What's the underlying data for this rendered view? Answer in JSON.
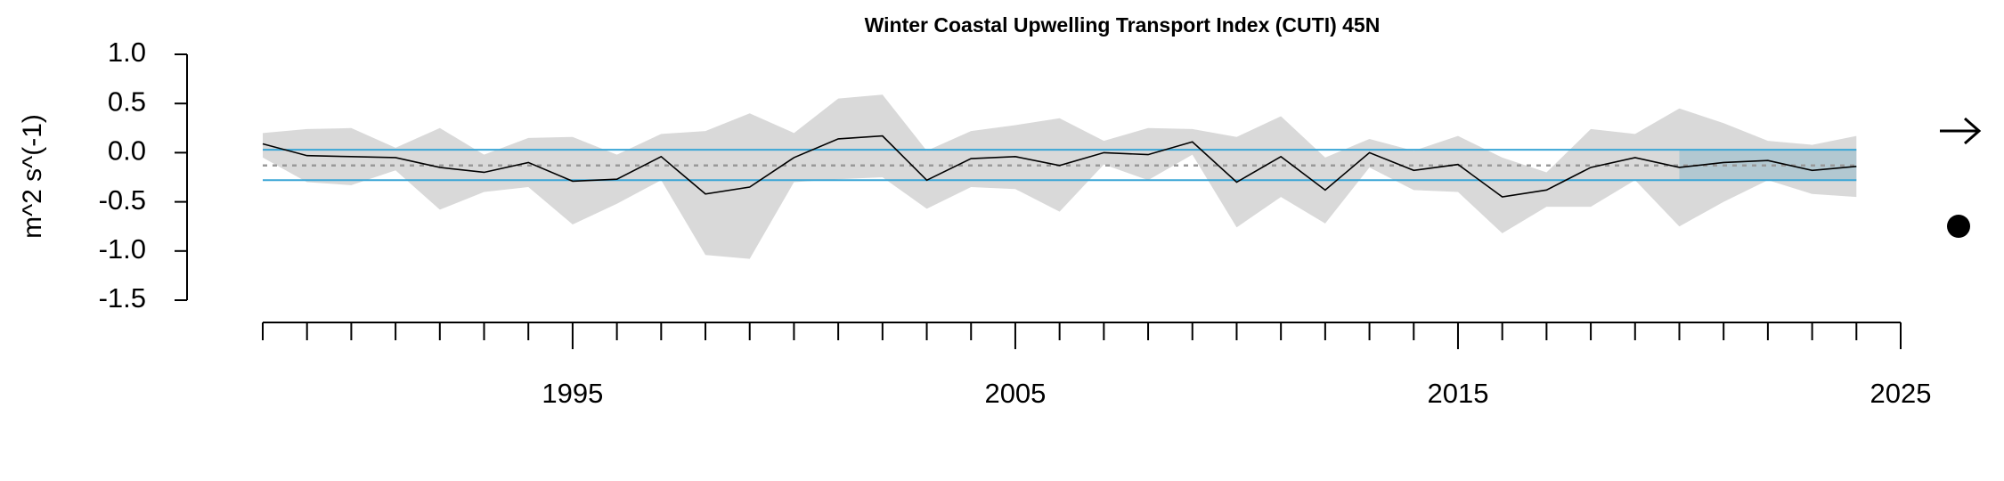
{
  "chart_data": {
    "type": "line",
    "title": "Winter Coastal Upwelling Transport Index (CUTI) 45N",
    "ylabel": "m^2 s^(-1)",
    "x": [
      1988,
      1989,
      1990,
      1991,
      1992,
      1993,
      1994,
      1995,
      1996,
      1997,
      1998,
      1999,
      2000,
      2001,
      2002,
      2003,
      2004,
      2005,
      2006,
      2007,
      2008,
      2009,
      2010,
      2011,
      2012,
      2013,
      2014,
      2015,
      2016,
      2017,
      2018,
      2019,
      2020,
      2021,
      2022,
      2023,
      2024
    ],
    "values": [
      0.09,
      -0.03,
      -0.04,
      -0.05,
      -0.15,
      -0.2,
      -0.1,
      -0.29,
      -0.27,
      -0.04,
      -0.42,
      -0.35,
      -0.05,
      0.14,
      0.17,
      -0.28,
      -0.06,
      -0.04,
      -0.13,
      0.0,
      -0.02,
      0.11,
      -0.3,
      -0.04,
      -0.38,
      0.0,
      -0.18,
      -0.12,
      -0.45,
      -0.38,
      -0.15,
      -0.05,
      -0.15,
      -0.1,
      -0.08,
      -0.18,
      -0.14
    ],
    "upper": [
      0.2,
      0.24,
      0.25,
      0.05,
      0.25,
      -0.02,
      0.15,
      0.16,
      -0.02,
      0.19,
      0.22,
      0.4,
      0.2,
      0.55,
      0.59,
      0.02,
      0.22,
      0.28,
      0.35,
      0.12,
      0.25,
      0.24,
      0.16,
      0.37,
      -0.05,
      0.14,
      0.02,
      0.17,
      -0.05,
      -0.2,
      0.24,
      0.19,
      0.45,
      0.3,
      0.12,
      0.08,
      0.17
    ],
    "lower": [
      -0.05,
      -0.3,
      -0.33,
      -0.18,
      -0.58,
      -0.4,
      -0.35,
      -0.73,
      -0.52,
      -0.28,
      -1.04,
      -1.08,
      -0.3,
      -0.27,
      -0.25,
      -0.57,
      -0.35,
      -0.37,
      -0.6,
      -0.12,
      -0.28,
      -0.02,
      -0.76,
      -0.45,
      -0.72,
      -0.15,
      -0.38,
      -0.4,
      -0.82,
      -0.55,
      -0.55,
      -0.28,
      -0.75,
      -0.5,
      -0.28,
      -0.42,
      -0.45
    ],
    "mean": -0.13,
    "sd_upper": 0.03,
    "sd_lower": -0.28,
    "recent_period": [
      2020,
      2024
    ],
    "color": "#000000",
    "band_color": "#d9d9d9",
    "sd_color": "#3aa6d6",
    "recent_color": "#aac4cf",
    "xlim": [
      1988,
      2025
    ],
    "xticks": [
      1995,
      2005,
      2015,
      2025
    ],
    "xminorticks": [
      1988,
      1989,
      1990,
      1991,
      1992,
      1993,
      1994,
      1996,
      1997,
      1998,
      1999,
      2000,
      2001,
      2002,
      2003,
      2004,
      2006,
      2007,
      2008,
      2009,
      2010,
      2011,
      2012,
      2013,
      2014,
      2016,
      2017,
      2018,
      2019,
      2020,
      2021,
      2022,
      2023,
      2024
    ],
    "ylim": [
      -1.5,
      1.0
    ],
    "yticks": [
      {
        "value": 1.0,
        "label": "1.0"
      },
      {
        "value": 0.5,
        "label": "0.5"
      },
      {
        "value": 0.0,
        "label": "0.0"
      },
      {
        "value": -0.5,
        "label": "-0.5"
      },
      {
        "value": -1.0,
        "label": "-1.0"
      },
      {
        "value": -1.5,
        "label": "-1.5"
      }
    ]
  }
}
